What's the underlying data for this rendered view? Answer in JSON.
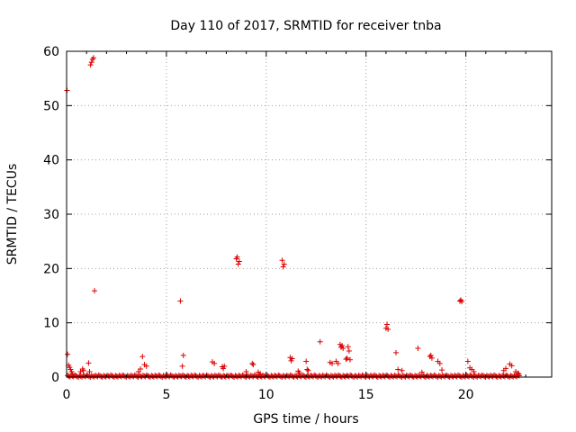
{
  "chart_data": {
    "type": "scatter",
    "title": "Day 110 of 2017, SRMTID for receiver tnba",
    "xlabel": "GPS time / hours",
    "ylabel": "SRMTID / TECUs",
    "xlim": [
      0,
      24.3
    ],
    "ylim": [
      0,
      60
    ],
    "xticks": [
      "0",
      "5",
      "10",
      "15",
      "20"
    ],
    "xtick_values": [
      0,
      5,
      10,
      15,
      20
    ],
    "yticks": [
      "0",
      "10",
      "20",
      "30",
      "40",
      "50",
      "60"
    ],
    "ytick_values": [
      0,
      10,
      20,
      30,
      40,
      50,
      60
    ],
    "grid": true,
    "marker": "plus",
    "colors": {
      "points": "#dd0000",
      "grid": "#a0a0a0",
      "frame": "#000000"
    },
    "baseline": {
      "x_start": 0.05,
      "x_end": 22.7,
      "step": 0.06,
      "y_max": 0.4
    },
    "series": [
      {
        "values": [
          [
            0.02,
            52.8
          ],
          [
            0.05,
            4.2
          ],
          [
            0.1,
            2.2
          ],
          [
            0.15,
            1.8
          ],
          [
            0.2,
            1.4
          ],
          [
            0.25,
            1.0
          ],
          [
            0.3,
            0.6
          ],
          [
            0.7,
            1.0
          ],
          [
            0.8,
            1.5
          ],
          [
            0.85,
            1.2
          ],
          [
            1.1,
            2.6
          ],
          [
            1.15,
            1.0
          ],
          [
            1.2,
            57.5
          ],
          [
            1.25,
            58.0
          ],
          [
            1.3,
            58.5
          ],
          [
            1.35,
            58.8
          ],
          [
            1.4,
            15.9
          ],
          [
            3.6,
            1.0
          ],
          [
            3.7,
            1.5
          ],
          [
            3.8,
            3.8
          ],
          [
            3.9,
            2.3
          ],
          [
            4.0,
            2.0
          ],
          [
            5.7,
            14.0
          ],
          [
            5.8,
            2.0
          ],
          [
            5.85,
            4.0
          ],
          [
            7.3,
            2.8
          ],
          [
            7.4,
            2.5
          ],
          [
            7.8,
            1.9
          ],
          [
            7.85,
            1.6
          ],
          [
            7.9,
            2.0
          ],
          [
            8.5,
            21.8
          ],
          [
            8.55,
            22.1
          ],
          [
            8.6,
            20.8
          ],
          [
            8.65,
            21.3
          ],
          [
            9.0,
            1.0
          ],
          [
            9.3,
            2.5
          ],
          [
            9.35,
            2.3
          ],
          [
            9.6,
            0.9
          ],
          [
            9.7,
            0.6
          ],
          [
            10.8,
            21.5
          ],
          [
            10.85,
            20.3
          ],
          [
            10.9,
            20.8
          ],
          [
            11.2,
            3.6
          ],
          [
            11.25,
            3.0
          ],
          [
            11.3,
            3.4
          ],
          [
            11.6,
            1.1
          ],
          [
            11.65,
            0.8
          ],
          [
            12.0,
            2.9
          ],
          [
            12.05,
            1.4
          ],
          [
            12.1,
            1.2
          ],
          [
            12.7,
            6.5
          ],
          [
            13.2,
            2.7
          ],
          [
            13.3,
            2.5
          ],
          [
            13.5,
            2.9
          ],
          [
            13.6,
            2.5
          ],
          [
            13.7,
            6.0
          ],
          [
            13.75,
            5.5
          ],
          [
            13.8,
            5.8
          ],
          [
            13.85,
            5.3
          ],
          [
            14.0,
            3.3
          ],
          [
            14.05,
            3.5
          ],
          [
            14.1,
            5.6
          ],
          [
            14.15,
            4.8
          ],
          [
            14.2,
            3.2
          ],
          [
            16.0,
            9.0
          ],
          [
            16.05,
            9.7
          ],
          [
            16.1,
            8.8
          ],
          [
            16.5,
            4.5
          ],
          [
            16.6,
            1.4
          ],
          [
            16.8,
            1.2
          ],
          [
            17.6,
            5.3
          ],
          [
            17.8,
            0.9
          ],
          [
            18.2,
            3.8
          ],
          [
            18.25,
            4.0
          ],
          [
            18.3,
            3.5
          ],
          [
            18.6,
            2.9
          ],
          [
            18.7,
            2.5
          ],
          [
            18.8,
            1.3
          ],
          [
            19.7,
            14.0
          ],
          [
            19.75,
            14.2
          ],
          [
            19.8,
            13.9
          ],
          [
            20.1,
            2.9
          ],
          [
            20.2,
            1.7
          ],
          [
            20.3,
            1.4
          ],
          [
            20.4,
            1.0
          ],
          [
            21.9,
            1.2
          ],
          [
            22.0,
            1.6
          ],
          [
            22.2,
            2.4
          ],
          [
            22.3,
            2.1
          ],
          [
            22.5,
            1.0
          ],
          [
            22.6,
            0.7
          ],
          [
            22.65,
            0.6
          ]
        ]
      }
    ]
  }
}
